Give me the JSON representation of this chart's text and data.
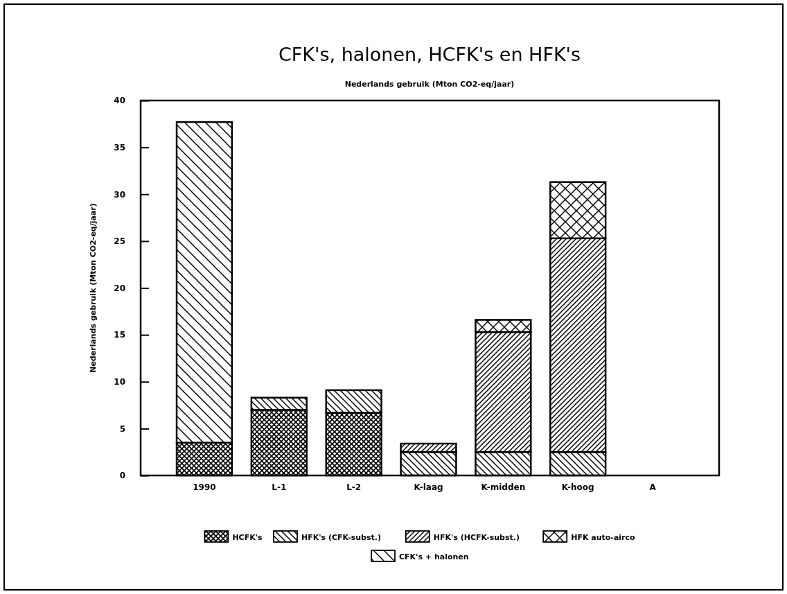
{
  "chart_data": {
    "type": "bar",
    "title": "CFK's, halonen, HCFK's en HFK's",
    "subtitle": "Nederlands gebruik (Mton CO2-eq/jaar)",
    "ylabel": "Nederlands gebruik (Mton CO2-eq/jaar)",
    "categories": [
      "1990",
      "L-1",
      "L-2",
      "K-laag",
      "K-midden",
      "K-hoog",
      "A"
    ],
    "stacked": true,
    "ylim": [
      0,
      40
    ],
    "yticks": [
      0,
      5,
      10,
      15,
      20,
      25,
      30,
      35,
      40
    ],
    "legend": "bottom",
    "series": [
      {
        "name": "HCFK's",
        "color": "#000000",
        "values": [
          3.5,
          7.0,
          6.7,
          null,
          null,
          null,
          null
        ]
      },
      {
        "name": "HFK's (CFK-subst.)",
        "color": "#000000",
        "values": [
          null,
          1.3,
          2.4,
          2.5,
          2.5,
          2.5,
          null
        ]
      },
      {
        "name": "HFK's (HCFK-subst.)",
        "color": "#000000",
        "values": [
          null,
          null,
          null,
          0.9,
          12.8,
          22.8,
          null
        ]
      },
      {
        "name": "HFK auto-airco",
        "color": "#000000",
        "values": [
          null,
          null,
          null,
          null,
          1.3,
          6.0,
          null
        ]
      },
      {
        "name": "CFK's + halonen",
        "color": "#000000",
        "values": [
          34.2,
          null,
          null,
          null,
          null,
          null,
          null
        ]
      }
    ]
  }
}
